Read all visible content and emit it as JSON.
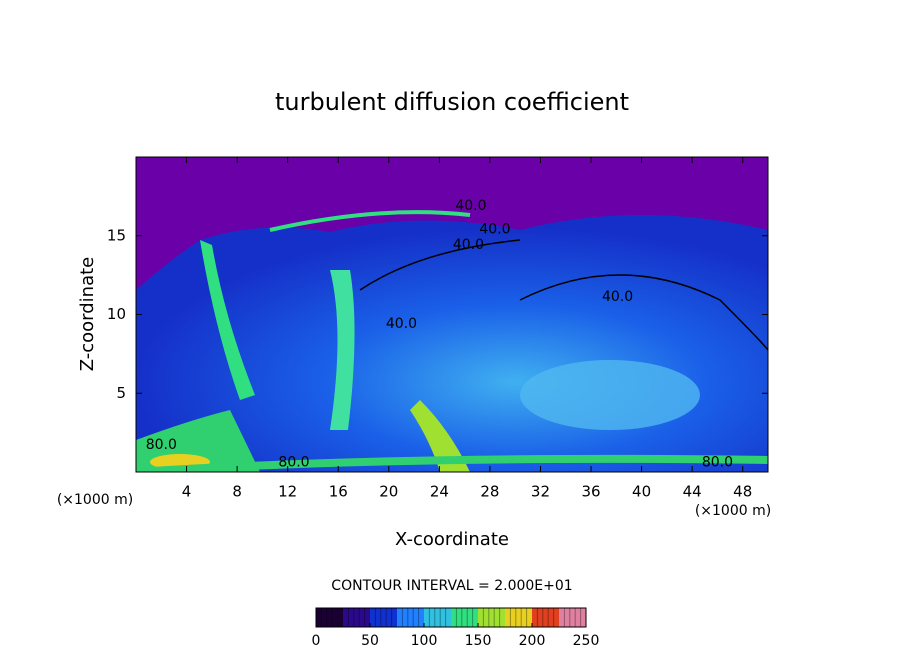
{
  "chart_data": {
    "type": "contour",
    "title": "turbulent diffusion coefficient",
    "x_label": "X-coordinate",
    "y_label": "Z-coordinate",
    "x_unit_label_left": "(×1000 m)",
    "x_unit_label_right": "(×1000 m)",
    "xlim": [
      0,
      50
    ],
    "xticks": [
      4,
      8,
      12,
      16,
      20,
      24,
      28,
      32,
      36,
      40,
      44,
      48
    ],
    "ylim": [
      0,
      20
    ],
    "yticks": [
      5,
      10,
      15
    ],
    "contour_labels": [
      {
        "value": 40,
        "label": "40.0",
        "x": 26.5,
        "y": 16.9
      },
      {
        "value": 40,
        "label": "40.0",
        "x": 28.4,
        "y": 15.4
      },
      {
        "value": 40,
        "label": "40.0",
        "x": 26.3,
        "y": 14.4
      },
      {
        "value": 40,
        "label": "40.0",
        "x": 38.1,
        "y": 11.1
      },
      {
        "value": 40,
        "label": "40.0",
        "x": 21.0,
        "y": 9.4
      },
      {
        "value": 80,
        "label": "80.0",
        "x": 2.0,
        "y": 1.7
      },
      {
        "value": 80,
        "label": "80.0",
        "x": 12.5,
        "y": 0.6
      },
      {
        "value": 80,
        "label": "80.0",
        "x": 46.0,
        "y": 0.6
      }
    ],
    "contour_interval_label": "CONTOUR INTERVAL = 2.000E+01",
    "colorbar": {
      "lim": [
        0,
        250
      ],
      "ticks": [
        0,
        50,
        100,
        150,
        200,
        250
      ],
      "colors": [
        "#1a0033",
        "#2a0a8a",
        "#1030d0",
        "#2080ff",
        "#30c0e0",
        "#30e080",
        "#a0e030",
        "#e8d020",
        "#e04020",
        "#e080a0"
      ]
    }
  }
}
